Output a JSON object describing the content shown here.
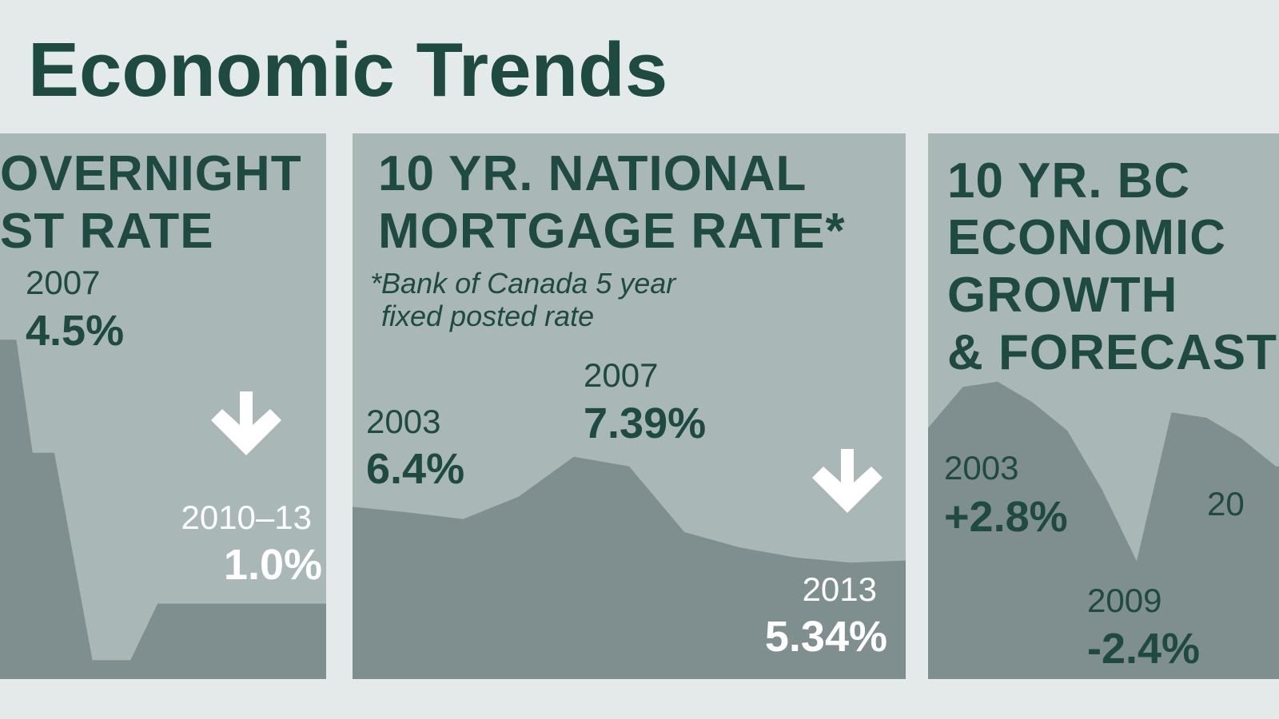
{
  "title": "Economic Trends",
  "chart_data": [
    {
      "type": "area",
      "title_lines": [
        "OVERNIGHT",
        "ST RATE"
      ],
      "x": [
        2007,
        2007.3,
        2007.6,
        2008,
        2008.7,
        2009.4,
        2009.9,
        2013
      ],
      "values": [
        4.5,
        4.5,
        3.0,
        3.0,
        0.25,
        0.25,
        1.0,
        1.0
      ],
      "xlim": [
        2007,
        2013
      ],
      "ylim": [
        0,
        5
      ],
      "annotations": [
        {
          "year": "2007",
          "label": "4.5%"
        },
        {
          "year": "2010–13",
          "label": "1.0%"
        }
      ]
    },
    {
      "type": "area",
      "title_lines": [
        "10 YR. NATIONAL",
        "MORTGAGE RATE*"
      ],
      "subtitle_lines": [
        "*Bank of Canada 5 year",
        "fixed posted rate"
      ],
      "x": [
        2003,
        2004,
        2005,
        2006,
        2007,
        2008,
        2009,
        2010,
        2011,
        2012,
        2013
      ],
      "values": [
        6.4,
        6.29,
        6.16,
        6.6,
        7.39,
        7.2,
        5.9,
        5.6,
        5.4,
        5.3,
        5.34
      ],
      "xlim": [
        2003,
        2013
      ],
      "ylim": [
        3,
        8
      ],
      "annotations": [
        {
          "year": "2003",
          "label": "6.4%"
        },
        {
          "year": "2007",
          "label": "7.39%"
        },
        {
          "year": "2013",
          "label": "5.34%"
        }
      ]
    },
    {
      "type": "area",
      "title_lines": [
        "10 YR. BC",
        "ECONOMIC",
        "GROWTH",
        "& FORECAST"
      ],
      "x": [
        2003,
        2004,
        2005,
        2006,
        2007,
        2008,
        2009,
        2010,
        2011,
        2012,
        2013
      ],
      "values": [
        2.8,
        4.4,
        4.6,
        3.8,
        2.7,
        0.4,
        -2.4,
        3.4,
        3.2,
        2.4,
        1.3
      ],
      "xlim": [
        2003,
        2013
      ],
      "ylim": [
        -7,
        5
      ],
      "annotations": [
        {
          "year": "2003",
          "label": "+2.8%"
        },
        {
          "year": "2009",
          "label": "-2.4%"
        },
        {
          "year": "20"
        }
      ]
    }
  ]
}
